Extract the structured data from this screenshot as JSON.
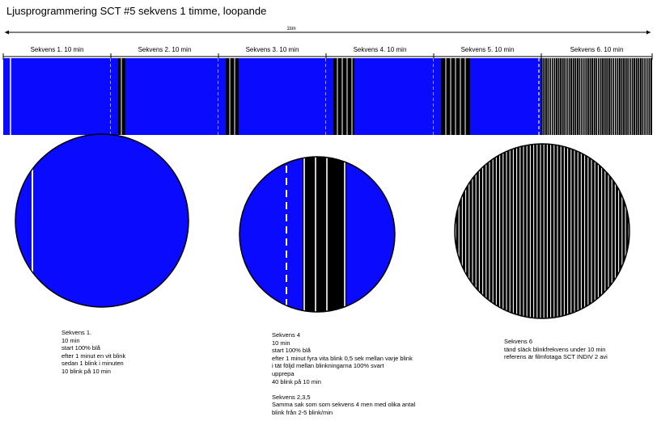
{
  "title": "Ljusprogrammering SCT #5 sekvens 1 timme, loopande",
  "timeline": {
    "total_label": "1tim",
    "segments": [
      {
        "label": "Sekvens 1. 10 min",
        "pattern": "blue-single"
      },
      {
        "label": "Sekvens 2. 10 min",
        "pattern": "blue-black-2"
      },
      {
        "label": "Sekvens 3. 10 min",
        "pattern": "blue-black-3"
      },
      {
        "label": "Sekvens 4. 10 min",
        "pattern": "blue-black-4"
      },
      {
        "label": "Sekvens 5. 10 min",
        "pattern": "blue-black-5"
      },
      {
        "label": "Sekvens 6. 10 min",
        "pattern": "black-white-stripes"
      }
    ]
  },
  "colors": {
    "blue": "#0a0aff",
    "black": "#000000",
    "white": "#ffffff"
  },
  "descriptions": {
    "seq1": [
      "Sekvens 1.",
      "10 min",
      "start 100% blå",
      "efter 1 minut en vit blink",
      "sedan 1 blink i minuten",
      "10 blink på 10 min"
    ],
    "seq4": [
      "Sekvens 4",
      "10 min",
      "start 100% blå",
      "efter 1 minut fyra vita blink 0,5 sek mellan varje blink",
      "i tät följd mellan blinkningarna 100% svart",
      "upprepa",
      "40 blink på 10 min",
      "",
      "Sekvens 2,3,5",
      "Samma sak som som sekvens 4 men med olika antal",
      "blink från 2-5 blink/min"
    ],
    "seq6": [
      "Sekvens 6",
      "tänd släck blinkfrekvens under 10 min",
      "referens är filmfotaga SCT INDIV 2 avi"
    ]
  }
}
